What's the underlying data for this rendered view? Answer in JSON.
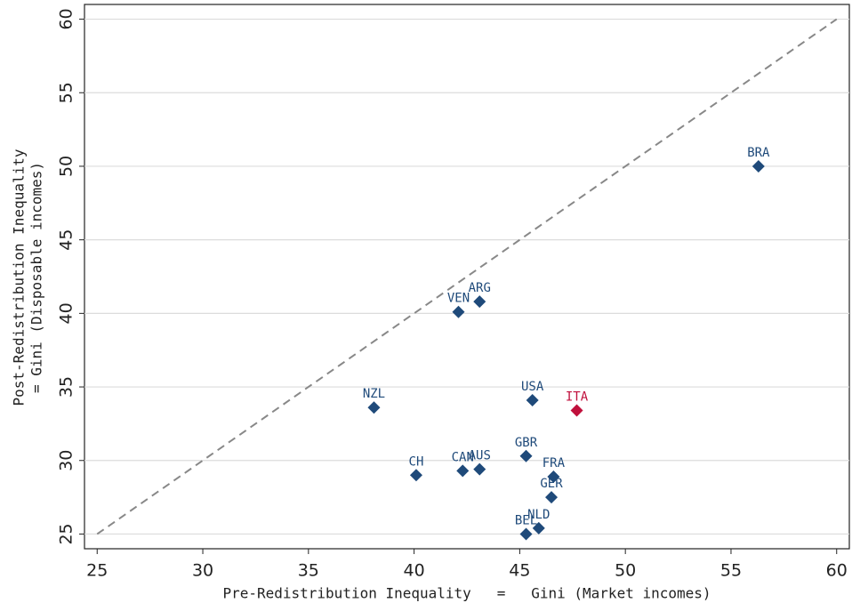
{
  "chart_data": {
    "type": "scatter",
    "x_label": "Pre-Redistribution Inequality   =   Gini (Market incomes)",
    "y_label": [
      "Post-Redistribution Inequality",
      "= Gini (Disposable incomes)"
    ],
    "labels": [
      "BRA",
      "ARG",
      "VEN",
      "NZL",
      "USA",
      "ITA",
      "GBR",
      "CH",
      "CAN",
      "AUS",
      "FRA",
      "GER",
      "NLD",
      "BEL"
    ],
    "x": [
      56.3,
      43.1,
      42.1,
      38.1,
      45.6,
      47.7,
      45.3,
      40.1,
      42.3,
      43.1,
      46.6,
      46.5,
      45.9,
      45.3
    ],
    "values": [
      50.0,
      40.8,
      40.1,
      33.6,
      34.1,
      33.4,
      30.3,
      29.0,
      29.3,
      29.4,
      28.9,
      27.5,
      25.4,
      25.0
    ],
    "colors": [
      "#1f4a7a",
      "#1f4a7a",
      "#1f4a7a",
      "#1f4a7a",
      "#1f4a7a",
      "#c0103c",
      "#1f4a7a",
      "#1f4a7a",
      "#1f4a7a",
      "#1f4a7a",
      "#1f4a7a",
      "#1f4a7a",
      "#1f4a7a",
      "#1f4a7a"
    ],
    "xlim": [
      24.4,
      60.6
    ],
    "ylim": [
      24,
      61
    ],
    "xticks": [
      25,
      30,
      35,
      40,
      45,
      50,
      55,
      60
    ],
    "yticks": [
      25,
      30,
      35,
      40,
      45,
      50,
      55,
      60
    ],
    "grid": true
  }
}
